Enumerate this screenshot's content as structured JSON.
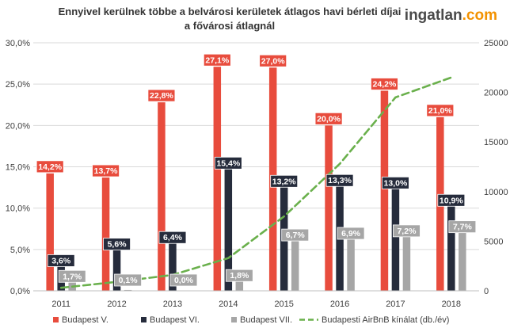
{
  "brand": {
    "name": "ingatlan",
    "suffix": ".com",
    "text_color": "#4a4a4a",
    "accent_color": "#f39200"
  },
  "chart_data": {
    "type": "bar",
    "title_lines": [
      "Ennyivel kerülnek többe a belvárosi kerületek átlagos havi bérleti díjai",
      "a fővárosi átlagnál"
    ],
    "categories": [
      "2011",
      "2012",
      "2013",
      "2014",
      "2015",
      "2016",
      "2017",
      "2018"
    ],
    "series": [
      {
        "name": "Budapest V.",
        "kind": "bar",
        "axis": "left",
        "color": "#e84c3d",
        "values": [
          14.2,
          13.7,
          22.8,
          27.1,
          27.0,
          20.0,
          24.2,
          21.0
        ],
        "labels": [
          "14,2%",
          "13,7%",
          "22,8%",
          "27,1%",
          "27,0%",
          "20,0%",
          "24,2%",
          "21,0%"
        ]
      },
      {
        "name": "Budapest VI.",
        "kind": "bar",
        "axis": "left",
        "color": "#262c3c",
        "values": [
          3.6,
          5.6,
          6.4,
          15.4,
          13.2,
          13.3,
          13.0,
          10.9
        ],
        "labels": [
          "3,6%",
          "5,6%",
          "6,4%",
          "15,4%",
          "13,2%",
          "13,3%",
          "13,0%",
          "10,9%"
        ]
      },
      {
        "name": "Budapest VII.",
        "kind": "bar",
        "axis": "left",
        "color": "#a6a6a6",
        "values": [
          1.7,
          0.1,
          0.0,
          1.8,
          6.7,
          6.9,
          7.2,
          7.7
        ],
        "labels": [
          "1,7%",
          "0,1%",
          "0,0%",
          "1,8%",
          "6,7%",
          "6,9%",
          "7,2%",
          "7,7%"
        ]
      },
      {
        "name": "Budapesti AirBnB kínálat (db./év)",
        "kind": "line",
        "axis": "right",
        "color": "#6ab04c",
        "dashed": true,
        "values": [
          300,
          900,
          1600,
          3300,
          7500,
          12800,
          19500,
          21500
        ]
      }
    ],
    "y_left": {
      "min": 0,
      "max": 30,
      "step": 5,
      "tick_labels": [
        "0,0%",
        "5,0%",
        "10,0%",
        "15,0%",
        "20,0%",
        "25,0%",
        "30,0%"
      ]
    },
    "y_right": {
      "min": 0,
      "max": 25000,
      "step": 5000,
      "tick_labels": [
        "0",
        "5000",
        "10000",
        "15000",
        "20000",
        "25000"
      ]
    },
    "xlabel": "",
    "ylabel": "",
    "grid": true,
    "legend_position": "bottom"
  }
}
